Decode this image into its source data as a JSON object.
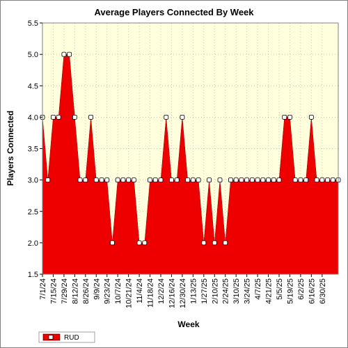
{
  "chart_data": {
    "type": "area",
    "title": "Average Players Connected By Week",
    "xlabel": "Week",
    "ylabel": "Players Connected",
    "ylim": [
      1.5,
      5.5
    ],
    "yticks": [
      "1.5",
      "2.0",
      "2.5",
      "3.0",
      "3.5",
      "4.0",
      "4.5",
      "5.0",
      "5.5"
    ],
    "xtick_labels": [
      "7/1/24",
      "7/15/24",
      "7/29/24",
      "8/12/24",
      "8/26/24",
      "9/9/24",
      "9/23/24",
      "10/7/24",
      "10/21/24",
      "11/4/24",
      "11/18/24",
      "12/2/24",
      "12/16/24",
      "12/30/24",
      "1/13/25",
      "1/27/25",
      "2/10/25",
      "2/24/25",
      "3/10/25",
      "3/24/25",
      "4/7/25",
      "4/21/25",
      "5/5/25",
      "5/19/25",
      "6/2/25",
      "6/16/25",
      "6/30/25"
    ],
    "grid": true,
    "legend_position": "bottom-left",
    "series": [
      {
        "name": "RUD",
        "color": "#ee0000",
        "marker_color": "#ffffff",
        "values": [
          4,
          3,
          4,
          4,
          5,
          5,
          4,
          3,
          3,
          4,
          3,
          3,
          3,
          2,
          3,
          3,
          3,
          3,
          2,
          2,
          3,
          3,
          3,
          4,
          3,
          3,
          4,
          3,
          3,
          3,
          2,
          3,
          2,
          3,
          2,
          3,
          3,
          3,
          3,
          3,
          3,
          3,
          3,
          3,
          3,
          4,
          4,
          3,
          3,
          3,
          4,
          3,
          3,
          3,
          3,
          3
        ]
      }
    ]
  }
}
